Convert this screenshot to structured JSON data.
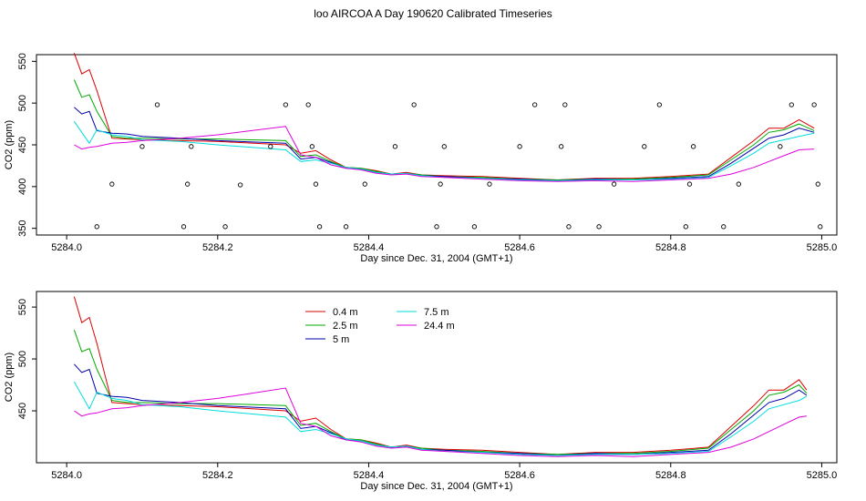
{
  "title": "loo AIRCOA A  Day 190620  Calibrated Timeseries",
  "colors": {
    "0.4 m": "#dd0000",
    "2.5 m": "#00aa00",
    "5 m": "#0000aa",
    "7.5 m": "#00dddd",
    "24.4 m": "#dd00dd",
    "markers": "#000000"
  },
  "chart_data": [
    {
      "type": "line",
      "xlabel": "Day since Dec. 31, 2004 (GMT+1)",
      "ylabel": "CO2 (ppm)",
      "xlim": [
        5283.96,
        5285.02
      ],
      "ylim": [
        342,
        558
      ],
      "xticks": [
        "5284.0",
        "5284.2",
        "5284.4",
        "5284.6",
        "5284.8",
        "5285.0"
      ],
      "yticks": [
        "350",
        "400",
        "450",
        "500",
        "550"
      ],
      "legend": "none",
      "x": [
        5284.01,
        5284.02,
        5284.03,
        5284.04,
        5284.06,
        5284.08,
        5284.1,
        5284.15,
        5284.2,
        5284.29,
        5284.31,
        5284.33,
        5284.35,
        5284.37,
        5284.39,
        5284.41,
        5284.43,
        5284.45,
        5284.47,
        5284.5,
        5284.55,
        5284.6,
        5284.65,
        5284.7,
        5284.75,
        5284.8,
        5284.85,
        5284.88,
        5284.91,
        5284.93,
        5284.95,
        5284.97,
        5284.99
      ],
      "series": [
        {
          "name": "0.4 m",
          "values": [
            560,
            535,
            540,
            515,
            458,
            457,
            456,
            455,
            454,
            450,
            440,
            443,
            432,
            423,
            422,
            419,
            415,
            417,
            414,
            413,
            412,
            410,
            408,
            410,
            410,
            412,
            415,
            435,
            455,
            470,
            470,
            480,
            470
          ]
        },
        {
          "name": "2.5 m",
          "values": [
            528,
            507,
            510,
            490,
            460,
            458,
            458,
            457,
            457,
            455,
            436,
            438,
            430,
            423,
            422,
            418,
            415,
            416,
            414,
            412,
            411,
            409,
            408,
            409,
            409,
            411,
            414,
            432,
            450,
            465,
            468,
            475,
            467
          ]
        },
        {
          "name": "5 m",
          "values": [
            495,
            487,
            490,
            467,
            464,
            463,
            460,
            458,
            455,
            452,
            433,
            435,
            429,
            422,
            421,
            417,
            415,
            416,
            413,
            412,
            410,
            409,
            407,
            409,
            408,
            410,
            412,
            428,
            446,
            458,
            462,
            470,
            465
          ]
        },
        {
          "name": "7.5 m",
          "values": [
            478,
            465,
            452,
            468,
            462,
            460,
            456,
            454,
            450,
            444,
            430,
            432,
            428,
            423,
            421,
            417,
            415,
            416,
            413,
            411,
            410,
            408,
            407,
            408,
            408,
            409,
            411,
            425,
            440,
            452,
            456,
            460,
            464
          ]
        },
        {
          "name": "24.4 m",
          "values": [
            450,
            445,
            447,
            448,
            452,
            453,
            455,
            458,
            462,
            472,
            438,
            435,
            426,
            422,
            420,
            416,
            414,
            415,
            412,
            411,
            409,
            407,
            406,
            407,
            406,
            408,
            410,
            415,
            423,
            430,
            437,
            444,
            445
          ]
        }
      ],
      "markers": {
        "x": [
          5284.04,
          5284.06,
          5284.1,
          5284.12,
          5284.155,
          5284.16,
          5284.165,
          5284.21,
          5284.23,
          5284.27,
          5284.29,
          5284.32,
          5284.325,
          5284.33,
          5284.335,
          5284.37,
          5284.395,
          5284.435,
          5284.46,
          5284.49,
          5284.495,
          5284.5,
          5284.54,
          5284.56,
          5284.6,
          5284.62,
          5284.655,
          5284.66,
          5284.665,
          5284.705,
          5284.725,
          5284.765,
          5284.785,
          5284.82,
          5284.825,
          5284.83,
          5284.87,
          5284.89,
          5284.945,
          5284.96,
          5284.99,
          5284.995,
          5284.998
        ],
        "y": [
          352,
          403,
          448,
          498,
          352,
          403,
          448,
          352,
          402,
          448,
          498,
          498,
          448,
          403,
          352,
          352,
          403,
          448,
          498,
          352,
          403,
          448,
          352,
          403,
          448,
          498,
          448,
          498,
          352,
          352,
          403,
          448,
          498,
          352,
          403,
          448,
          352,
          403,
          448,
          498,
          498,
          403,
          352
        ]
      }
    },
    {
      "type": "line",
      "xlabel": "Day since Dec. 31, 2004 (GMT+1)",
      "ylabel": "CO2 (ppm)",
      "xlim": [
        5283.96,
        5285.02
      ],
      "ylim": [
        400,
        565
      ],
      "xticks": [
        "5284.0",
        "5284.2",
        "5284.4",
        "5284.6",
        "5284.8",
        "5285.0"
      ],
      "yticks": [
        "450",
        "500",
        "550"
      ],
      "legend": "top-left",
      "x": [
        5284.01,
        5284.02,
        5284.03,
        5284.04,
        5284.06,
        5284.08,
        5284.1,
        5284.15,
        5284.2,
        5284.29,
        5284.31,
        5284.33,
        5284.35,
        5284.37,
        5284.39,
        5284.41,
        5284.43,
        5284.45,
        5284.47,
        5284.5,
        5284.55,
        5284.6,
        5284.65,
        5284.7,
        5284.75,
        5284.8,
        5284.85,
        5284.88,
        5284.91,
        5284.93,
        5284.95,
        5284.97,
        5284.98
      ],
      "series": [
        {
          "name": "0.4 m",
          "values": [
            560,
            535,
            540,
            515,
            458,
            457,
            456,
            455,
            454,
            450,
            440,
            443,
            432,
            423,
            422,
            419,
            415,
            417,
            414,
            413,
            412,
            410,
            408,
            410,
            410,
            412,
            415,
            435,
            455,
            470,
            470,
            480,
            470
          ]
        },
        {
          "name": "2.5 m",
          "values": [
            528,
            507,
            510,
            490,
            460,
            458,
            458,
            457,
            457,
            455,
            436,
            438,
            430,
            423,
            422,
            418,
            415,
            416,
            414,
            412,
            411,
            409,
            408,
            409,
            409,
            411,
            414,
            432,
            450,
            465,
            468,
            475,
            467
          ]
        },
        {
          "name": "5 m",
          "values": [
            495,
            487,
            490,
            467,
            464,
            463,
            460,
            458,
            455,
            452,
            433,
            435,
            429,
            422,
            421,
            417,
            415,
            416,
            413,
            412,
            410,
            409,
            407,
            409,
            408,
            410,
            412,
            428,
            446,
            458,
            462,
            470,
            465
          ]
        },
        {
          "name": "7.5 m",
          "values": [
            478,
            465,
            452,
            468,
            462,
            460,
            456,
            454,
            450,
            444,
            430,
            432,
            428,
            423,
            421,
            417,
            415,
            416,
            413,
            411,
            410,
            408,
            407,
            408,
            408,
            409,
            411,
            425,
            440,
            452,
            456,
            460,
            464
          ]
        },
        {
          "name": "24.4 m",
          "values": [
            450,
            445,
            447,
            448,
            452,
            453,
            455,
            458,
            462,
            472,
            438,
            435,
            426,
            422,
            420,
            416,
            414,
            415,
            412,
            411,
            409,
            407,
            406,
            407,
            406,
            408,
            410,
            415,
            423,
            430,
            437,
            444,
            445
          ]
        }
      ]
    }
  ]
}
